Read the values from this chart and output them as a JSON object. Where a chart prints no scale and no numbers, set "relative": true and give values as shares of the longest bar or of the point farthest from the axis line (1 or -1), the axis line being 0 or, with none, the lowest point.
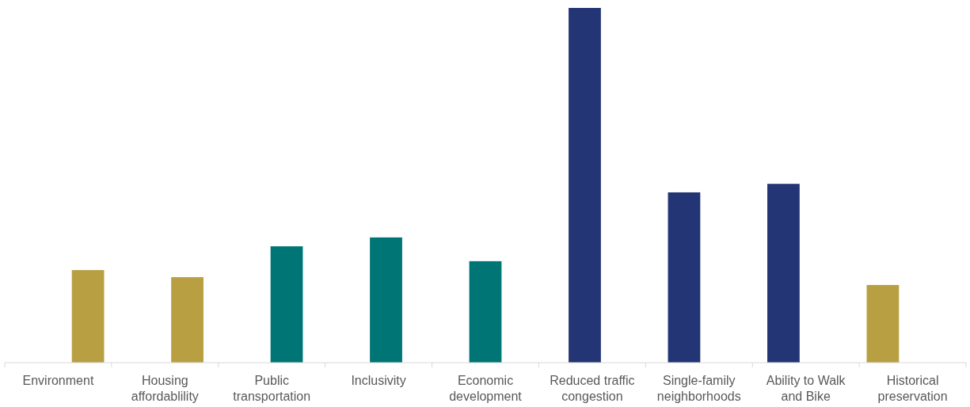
{
  "chart_data": {
    "type": "bar",
    "relative": true,
    "categories": [
      "Environment",
      "Housing affordablility",
      "Public transportation",
      "Inclusivity",
      "Economic development",
      "Reduced traffic congestion",
      "Single-family neighborhoods",
      "Ability to Walk and Bike",
      "Historical preservation"
    ],
    "values": [
      0.261,
      0.241,
      0.328,
      0.353,
      0.286,
      1,
      0.48,
      0.504,
      0.219
    ],
    "colors": [
      "#b89f42",
      "#b89f42",
      "#007575",
      "#007575",
      "#007575",
      "#233574",
      "#233574",
      "#233574",
      "#b89f42"
    ]
  }
}
